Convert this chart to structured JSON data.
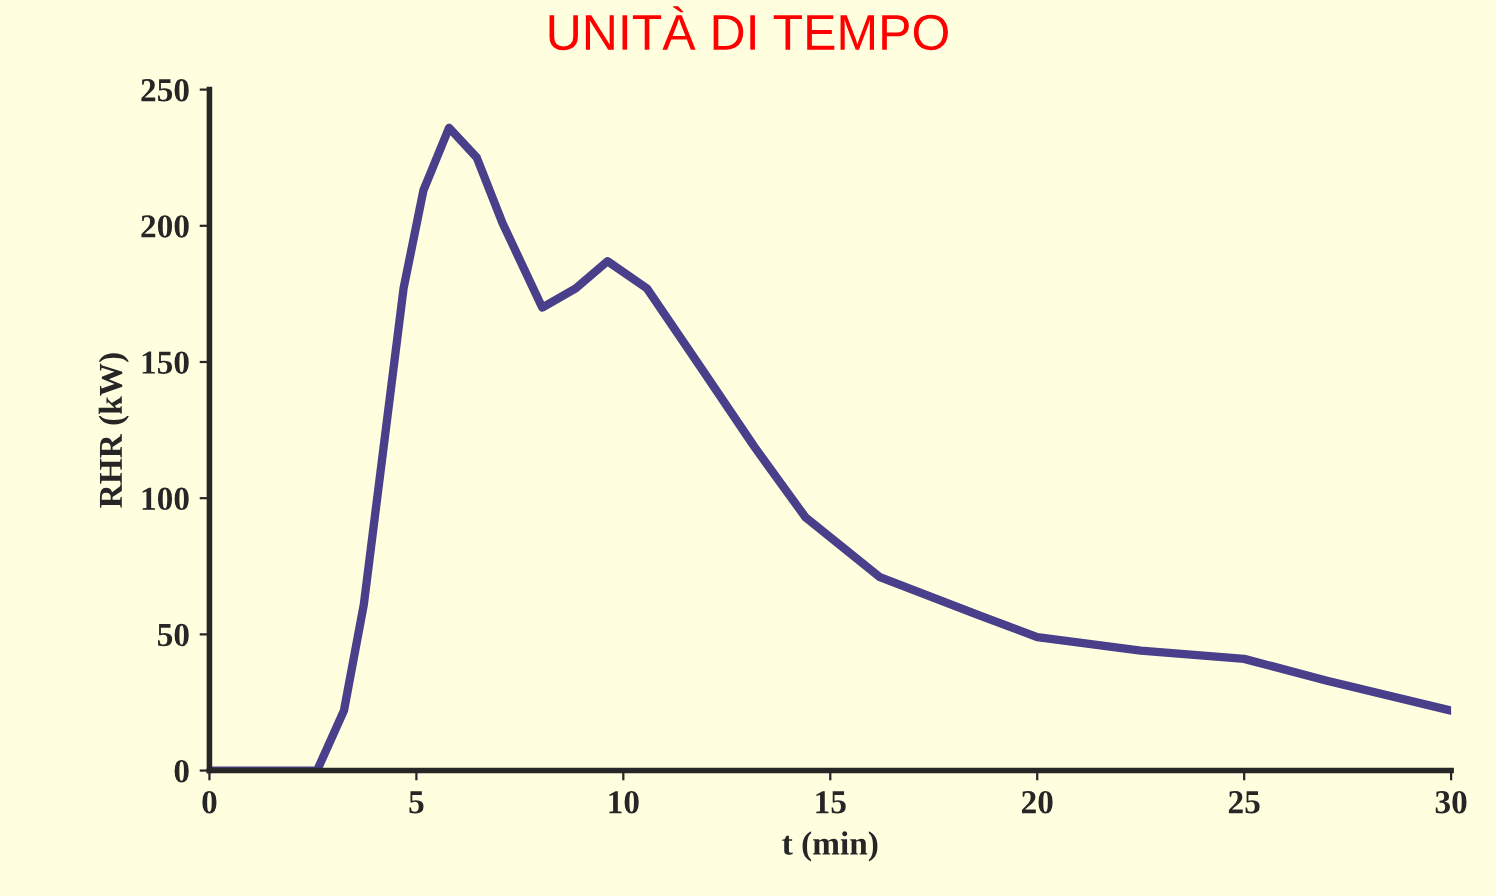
{
  "chart_data": {
    "type": "line",
    "title": "UNITÀ DI TEMPO",
    "xlabel": "t (min)",
    "ylabel": "RHR (kW)",
    "series": [
      {
        "color": "#4a3f8a",
        "x": [
          0,
          1,
          2,
          2.6,
          3.25,
          3.73,
          4.21,
          4.69,
          5.17,
          5.79,
          6.46,
          7.08,
          8.04,
          8.85,
          9.62,
          10.57,
          11.87,
          13.16,
          14.4,
          16.2,
          18.6,
          20,
          22.5,
          25,
          27,
          30
        ],
        "values": [
          0,
          0,
          0,
          0,
          22,
          61,
          119,
          177,
          213,
          236,
          225,
          201,
          170,
          177,
          187,
          177,
          148,
          119,
          93,
          71,
          57,
          49,
          44,
          41,
          33,
          22
        ]
      }
    ],
    "xlim": [
      0,
      30
    ],
    "ylim": [
      0,
      250
    ],
    "xticks": [
      0,
      5,
      10,
      15,
      20,
      25,
      30
    ],
    "yticks": [
      0,
      50,
      100,
      150,
      200,
      250
    ],
    "grid": false,
    "marker": "none",
    "line_style": "solid"
  }
}
